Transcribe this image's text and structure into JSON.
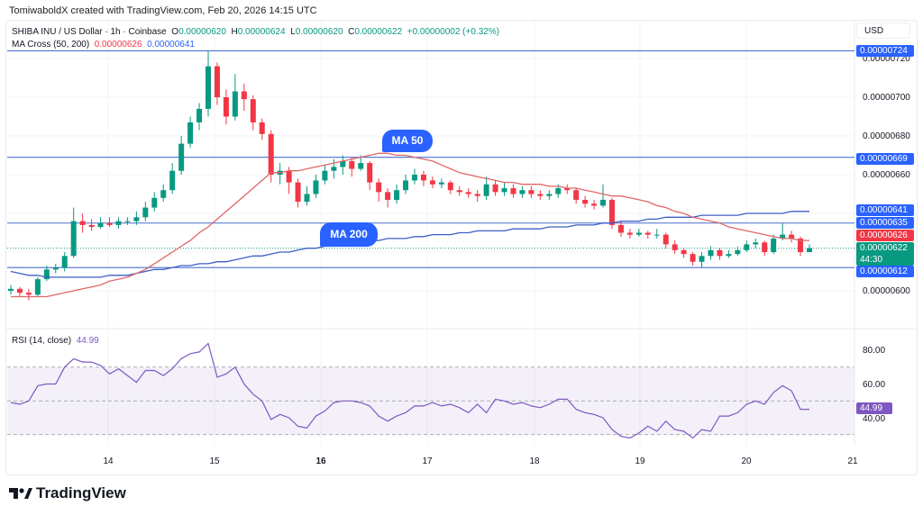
{
  "credit": "TomiwaboldX created with TradingView.com, Feb 20, 2026 14:15 UTC",
  "legend": {
    "symbol": "SHIBA INU / US Dollar · 1h · Coinbase",
    "o_label": "O",
    "o": "0.00000620",
    "h_label": "H",
    "h": "0.00000624",
    "l_label": "L",
    "l": "0.00000620",
    "c_label": "C",
    "c": "0.00000622",
    "change": "+0.00000002 (+0.32%)",
    "ma_name": "MA Cross (50, 200)",
    "ma50_value": "0.00000626",
    "ma200_value": "0.00000641",
    "rsi_name": "RSI (14, close)",
    "rsi_value": "44.99"
  },
  "currency": "USD",
  "annotations": {
    "ma50": "MA 50",
    "ma200": "MA 200"
  },
  "price_axis": {
    "ticks": [
      "0.00000720",
      "0.00000700",
      "0.00000680",
      "0.00000660",
      "0.00000600"
    ],
    "badges": [
      {
        "value": "0.00000724",
        "color": "#2962ff"
      },
      {
        "value": "0.00000669",
        "color": "#2962ff"
      },
      {
        "value": "0.00000641",
        "color": "#2962ff"
      },
      {
        "value": "0.00000635",
        "color": "#2962ff"
      },
      {
        "value": "0.00000626",
        "color": "#f23645"
      },
      {
        "value": "0.00000622",
        "color": "#089981",
        "countdown": "44:30"
      },
      {
        "value": "0.00000612",
        "color": "#2962ff"
      }
    ]
  },
  "rsi_axis": {
    "ticks": [
      "80.00",
      "60.00",
      "40.00"
    ],
    "badge": "44.99",
    "levels": [
      70,
      50,
      30
    ]
  },
  "x_axis": {
    "ticks": [
      "14",
      "15",
      "16",
      "17",
      "18",
      "19",
      "20",
      "21"
    ],
    "bold": [
      "16"
    ]
  },
  "logo": "TradingView",
  "colors": {
    "up": "#089981",
    "down": "#f23645",
    "ma50": "#e06666",
    "ma200": "#3d5fc4",
    "rsi": "#7e57c2",
    "hline": "#4a6fd0"
  },
  "chart_data": {
    "type": "candlestick",
    "title": "SHIBA INU / US Dollar · 1h · Coinbase",
    "horizontal_lines": [
      7.24e-06,
      6.69e-06,
      6.35e-06,
      6.12e-06
    ],
    "last_price_line": 6.22e-06,
    "ylim": [
      5.92e-06,
      7.4e-06
    ],
    "candles_ohlc": [
      [
        6e-06,
        6.03e-06,
        5.98e-06,
        6.01e-06
      ],
      [
        6.01e-06,
        6.02e-06,
        5.97e-06,
        5.99e-06
      ],
      [
        5.99e-06,
        6.01e-06,
        5.95e-06,
        5.98e-06
      ],
      [
        5.98e-06,
        6.07e-06,
        5.97e-06,
        6.06e-06
      ],
      [
        6.06e-06,
        6.13e-06,
        6.05e-06,
        6.11e-06
      ],
      [
        6.11e-06,
        6.14e-06,
        6.09e-06,
        6.12e-06
      ],
      [
        6.12e-06,
        6.2e-06,
        6.1e-06,
        6.18e-06
      ],
      [
        6.18e-06,
        6.43e-06,
        6.17e-06,
        6.36e-06
      ],
      [
        6.36e-06,
        6.4e-06,
        6.3e-06,
        6.34e-06
      ],
      [
        6.34e-06,
        6.37e-06,
        6.31e-06,
        6.33e-06
      ],
      [
        6.33e-06,
        6.38e-06,
        6.32e-06,
        6.35e-06
      ],
      [
        6.35e-06,
        6.38e-06,
        6.33e-06,
        6.34e-06
      ],
      [
        6.34e-06,
        6.38e-06,
        6.32e-06,
        6.36e-06
      ],
      [
        6.36e-06,
        6.38e-06,
        6.34e-06,
        6.36e-06
      ],
      [
        6.36e-06,
        6.41e-06,
        6.34e-06,
        6.38e-06
      ],
      [
        6.38e-06,
        6.46e-06,
        6.36e-06,
        6.43e-06
      ],
      [
        6.43e-06,
        6.51e-06,
        6.41e-06,
        6.48e-06
      ],
      [
        6.48e-06,
        6.55e-06,
        6.46e-06,
        6.52e-06
      ],
      [
        6.52e-06,
        6.66e-06,
        6.5e-06,
        6.62e-06
      ],
      [
        6.62e-06,
        6.8e-06,
        6.6e-06,
        6.76e-06
      ],
      [
        6.76e-06,
        6.9e-06,
        6.74e-06,
        6.87e-06
      ],
      [
        6.87e-06,
        6.97e-06,
        6.83e-06,
        6.94e-06
      ],
      [
        6.94e-06,
        7.24e-06,
        6.9e-06,
        7.16e-06
      ],
      [
        7.16e-06,
        7.18e-06,
        6.96e-06,
        7e-06
      ],
      [
        7e-06,
        7.04e-06,
        6.86e-06,
        6.9e-06
      ],
      [
        6.9e-06,
        7.12e-06,
        6.88e-06,
        7.03e-06
      ],
      [
        7.03e-06,
        7.07e-06,
        6.93e-06,
        6.99e-06
      ],
      [
        6.99e-06,
        7.01e-06,
        6.83e-06,
        6.87e-06
      ],
      [
        6.87e-06,
        6.89e-06,
        6.78e-06,
        6.81e-06
      ],
      [
        6.81e-06,
        6.83e-06,
        6.56e-06,
        6.6e-06
      ],
      [
        6.6e-06,
        6.66e-06,
        6.55e-06,
        6.62e-06
      ],
      [
        6.62e-06,
        6.64e-06,
        6.5e-06,
        6.56e-06
      ],
      [
        6.56e-06,
        6.58e-06,
        6.43e-06,
        6.46e-06
      ],
      [
        6.46e-06,
        6.54e-06,
        6.44e-06,
        6.5e-06
      ],
      [
        6.5e-06,
        6.6e-06,
        6.48e-06,
        6.57e-06
      ],
      [
        6.57e-06,
        6.65e-06,
        6.55e-06,
        6.62e-06
      ],
      [
        6.62e-06,
        6.68e-06,
        6.58e-06,
        6.64e-06
      ],
      [
        6.64e-06,
        6.7e-06,
        6.6e-06,
        6.67e-06
      ],
      [
        6.67e-06,
        6.69e-06,
        6.59e-06,
        6.63e-06
      ],
      [
        6.63e-06,
        6.7e-06,
        6.62e-06,
        6.66e-06
      ],
      [
        6.66e-06,
        6.67e-06,
        6.52e-06,
        6.56e-06
      ],
      [
        6.56e-06,
        6.58e-06,
        6.46e-06,
        6.51e-06
      ],
      [
        6.51e-06,
        6.53e-06,
        6.43e-06,
        6.47e-06
      ],
      [
        6.47e-06,
        6.55e-06,
        6.45e-06,
        6.52e-06
      ],
      [
        6.52e-06,
        6.6e-06,
        6.5e-06,
        6.57e-06
      ],
      [
        6.57e-06,
        6.63e-06,
        6.55e-06,
        6.6e-06
      ],
      [
        6.6e-06,
        6.62e-06,
        6.54e-06,
        6.57e-06
      ],
      [
        6.57e-06,
        6.59e-06,
        6.53e-06,
        6.55e-06
      ],
      [
        6.55e-06,
        6.58e-06,
        6.53e-06,
        6.56e-06
      ],
      [
        6.56e-06,
        6.57e-06,
        6.5e-06,
        6.52e-06
      ],
      [
        6.52e-06,
        6.54e-06,
        6.49e-06,
        6.51e-06
      ],
      [
        6.51e-06,
        6.53e-06,
        6.48e-06,
        6.5e-06
      ],
      [
        6.5e-06,
        6.52e-06,
        6.46e-06,
        6.49e-06
      ],
      [
        6.49e-06,
        6.59e-06,
        6.47e-06,
        6.55e-06
      ],
      [
        6.55e-06,
        6.57e-06,
        6.49e-06,
        6.51e-06
      ],
      [
        6.51e-06,
        6.56e-06,
        6.49e-06,
        6.53e-06
      ],
      [
        6.53e-06,
        6.55e-06,
        6.48e-06,
        6.5e-06
      ],
      [
        6.5e-06,
        6.54e-06,
        6.48e-06,
        6.52e-06
      ],
      [
        6.52e-06,
        6.54e-06,
        6.48e-06,
        6.5e-06
      ],
      [
        6.5e-06,
        6.52e-06,
        6.47e-06,
        6.49e-06
      ],
      [
        6.49e-06,
        6.52e-06,
        6.47e-06,
        6.5e-06
      ],
      [
        6.5e-06,
        6.55e-06,
        6.48e-06,
        6.53e-06
      ],
      [
        6.53e-06,
        6.55e-06,
        6.5e-06,
        6.52e-06
      ],
      [
        6.52e-06,
        6.53e-06,
        6.45e-06,
        6.47e-06
      ],
      [
        6.47e-06,
        6.49e-06,
        6.43e-06,
        6.45e-06
      ],
      [
        6.45e-06,
        6.47e-06,
        6.42e-06,
        6.44e-06
      ],
      [
        6.44e-06,
        6.55e-06,
        6.43e-06,
        6.47e-06
      ],
      [
        6.47e-06,
        6.48e-06,
        6.32e-06,
        6.34e-06
      ],
      [
        6.34e-06,
        6.36e-06,
        6.28e-06,
        6.3e-06
      ],
      [
        6.3e-06,
        6.32e-06,
        6.27e-06,
        6.29e-06
      ],
      [
        6.29e-06,
        6.32e-06,
        6.28e-06,
        6.3e-06
      ],
      [
        6.3e-06,
        6.31e-06,
        6.27e-06,
        6.29e-06
      ],
      [
        6.29e-06,
        6.32e-06,
        6.27e-06,
        6.29e-06
      ],
      [
        6.29e-06,
        6.3e-06,
        6.22e-06,
        6.24e-06
      ],
      [
        6.24e-06,
        6.26e-06,
        6.19e-06,
        6.21e-06
      ],
      [
        6.21e-06,
        6.22e-06,
        6.17e-06,
        6.19e-06
      ],
      [
        6.19e-06,
        6.2e-06,
        6.13e-06,
        6.15e-06
      ],
      [
        6.15e-06,
        6.2e-06,
        6.12e-06,
        6.18e-06
      ],
      [
        6.18e-06,
        6.23e-06,
        6.16e-06,
        6.21e-06
      ],
      [
        6.21e-06,
        6.22e-06,
        6.16e-06,
        6.18e-06
      ],
      [
        6.18e-06,
        6.21e-06,
        6.17e-06,
        6.19e-06
      ],
      [
        6.19e-06,
        6.23e-06,
        6.18e-06,
        6.21e-06
      ],
      [
        6.21e-06,
        6.26e-06,
        6.2e-06,
        6.24e-06
      ],
      [
        6.24e-06,
        6.27e-06,
        6.22e-06,
        6.25e-06
      ],
      [
        6.25e-06,
        6.26e-06,
        6.18e-06,
        6.2e-06
      ],
      [
        6.2e-06,
        6.29e-06,
        6.19e-06,
        6.27e-06
      ],
      [
        6.27e-06,
        6.35e-06,
        6.26e-06,
        6.29e-06
      ],
      [
        6.29e-06,
        6.31e-06,
        6.25e-06,
        6.27e-06
      ],
      [
        6.27e-06,
        6.28e-06,
        6.18e-06,
        6.2e-06
      ],
      [
        6.2e-06,
        6.24e-06,
        6.2e-06,
        6.22e-06
      ]
    ],
    "ma50": [
      5.97e-06,
      5.97e-06,
      5.97e-06,
      5.97e-06,
      5.97e-06,
      5.98e-06,
      5.99e-06,
      6e-06,
      6.01e-06,
      6.02e-06,
      6.03e-06,
      6.05e-06,
      6.06e-06,
      6.07e-06,
      6.09e-06,
      6.11e-06,
      6.14e-06,
      6.17e-06,
      6.2e-06,
      6.23e-06,
      6.26e-06,
      6.3e-06,
      6.33e-06,
      6.37e-06,
      6.41e-06,
      6.45e-06,
      6.49e-06,
      6.53e-06,
      6.57e-06,
      6.61e-06,
      6.61e-06,
      6.62e-06,
      6.62e-06,
      6.63e-06,
      6.64e-06,
      6.65e-06,
      6.66e-06,
      6.67e-06,
      6.68e-06,
      6.69e-06,
      6.7e-06,
      6.71e-06,
      6.71e-06,
      6.7e-06,
      6.7e-06,
      6.69e-06,
      6.68e-06,
      6.67e-06,
      6.65e-06,
      6.63e-06,
      6.61e-06,
      6.6e-06,
      6.59e-06,
      6.58e-06,
      6.57e-06,
      6.56e-06,
      6.56e-06,
      6.55e-06,
      6.55e-06,
      6.55e-06,
      6.54e-06,
      6.54e-06,
      6.53e-06,
      6.53e-06,
      6.52e-06,
      6.51e-06,
      6.5e-06,
      6.49e-06,
      6.49e-06,
      6.48e-06,
      6.47e-06,
      6.46e-06,
      6.44e-06,
      6.43e-06,
      6.41e-06,
      6.4e-06,
      6.38e-06,
      6.37e-06,
      6.36e-06,
      6.35e-06,
      6.33e-06,
      6.32e-06,
      6.31e-06,
      6.3e-06,
      6.29e-06,
      6.28e-06,
      6.27e-06,
      6.27e-06,
      6.26e-06,
      6.26e-06
    ],
    "ma200": [
      6.1e-06,
      6.09e-06,
      6.08e-06,
      6.08e-06,
      6.07e-06,
      6.07e-06,
      6.07e-06,
      6.07e-06,
      6.07e-06,
      6.07e-06,
      6.07e-06,
      6.08e-06,
      6.08e-06,
      6.08e-06,
      6.09e-06,
      6.1e-06,
      6.11e-06,
      6.11e-06,
      6.12e-06,
      6.13e-06,
      6.13e-06,
      6.14e-06,
      6.14e-06,
      6.15e-06,
      6.15e-06,
      6.16e-06,
      6.17e-06,
      6.18e-06,
      6.18e-06,
      6.19e-06,
      6.2e-06,
      6.2e-06,
      6.21e-06,
      6.22e-06,
      6.22e-06,
      6.23e-06,
      6.23e-06,
      6.24e-06,
      6.25e-06,
      6.25e-06,
      6.26e-06,
      6.26e-06,
      6.27e-06,
      6.27e-06,
      6.27e-06,
      6.28e-06,
      6.28e-06,
      6.29e-06,
      6.29e-06,
      6.29e-06,
      6.3e-06,
      6.3e-06,
      6.31e-06,
      6.31e-06,
      6.31e-06,
      6.31e-06,
      6.32e-06,
      6.32e-06,
      6.32e-06,
      6.32e-06,
      6.33e-06,
      6.33e-06,
      6.33e-06,
      6.34e-06,
      6.34e-06,
      6.34e-06,
      6.35e-06,
      6.35e-06,
      6.36e-06,
      6.36e-06,
      6.36e-06,
      6.37e-06,
      6.37e-06,
      6.38e-06,
      6.38e-06,
      6.38e-06,
      6.38e-06,
      6.39e-06,
      6.39e-06,
      6.39e-06,
      6.39e-06,
      6.39e-06,
      6.4e-06,
      6.4e-06,
      6.4e-06,
      6.4e-06,
      6.4e-06,
      6.41e-06,
      6.41e-06,
      6.41e-06
    ],
    "rsi": [
      49,
      48,
      50,
      59,
      60,
      60,
      70,
      75,
      73,
      73,
      71,
      66,
      69,
      65,
      61,
      68,
      68,
      65,
      69,
      75,
      78,
      79,
      84,
      64,
      66,
      70,
      60,
      54,
      50,
      39,
      42,
      40,
      35,
      34,
      41,
      44,
      49,
      50,
      50,
      49,
      47,
      41,
      38,
      41,
      43,
      47,
      47,
      49,
      47,
      48,
      46,
      43,
      48,
      43,
      51,
      50,
      48,
      49,
      47,
      46,
      48,
      51,
      51,
      45,
      43,
      42,
      40,
      33,
      29,
      28,
      31,
      35,
      32,
      38,
      33,
      32,
      28,
      33,
      32,
      41,
      41,
      43,
      48,
      50,
      48,
      55,
      59,
      56,
      45,
      44.99
    ],
    "rsi_ylim": [
      20,
      90
    ]
  }
}
